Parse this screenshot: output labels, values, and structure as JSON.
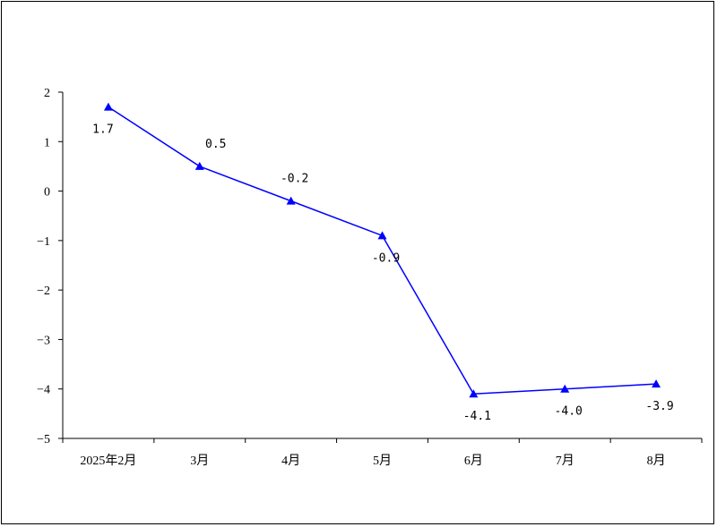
{
  "chart_data": {
    "type": "line",
    "title": "",
    "xlabel": "",
    "ylabel": "",
    "categories": [
      "2025年2月",
      "3月",
      "4月",
      "5月",
      "6月",
      "7月",
      "8月"
    ],
    "series": [
      {
        "values": [
          1.7,
          0.5,
          -0.2,
          -0.9,
          -4.1,
          -4.0,
          -3.9
        ],
        "value_labels": [
          "1.7",
          "0.5",
          "-0.2",
          "-0.9",
          "-4.1",
          "-4.0",
          "-3.9"
        ],
        "color": "#0000ff",
        "marker": "triangle"
      }
    ],
    "ylim": [
      -5,
      2
    ],
    "yticks": [
      2,
      1,
      0,
      -1,
      -2,
      -3,
      -4,
      -5
    ],
    "ytick_labels": [
      "2",
      "1",
      "0",
      "−1",
      "−2",
      "−3",
      "−4",
      "−5"
    ],
    "grid": false,
    "legend": "none"
  }
}
